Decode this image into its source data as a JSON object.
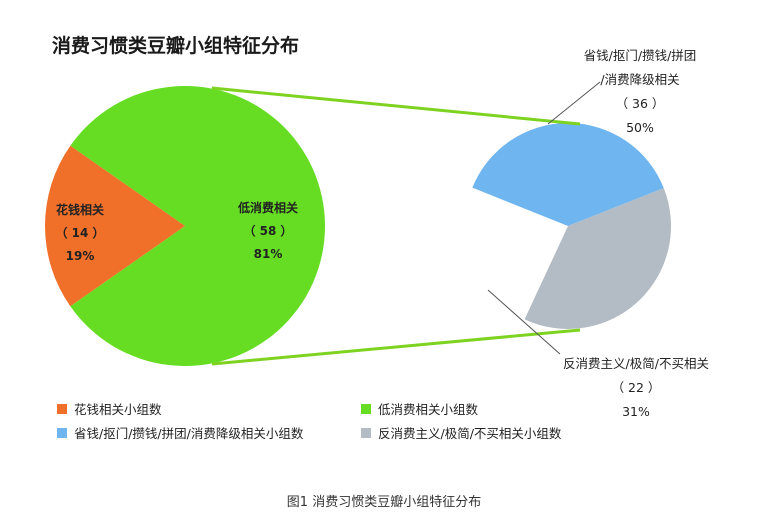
{
  "chart_data": {
    "type": "bar-of-pie",
    "title": "消费习惯类豆瓣小组特征分布",
    "caption": "图1 消费习惯类豆瓣小组特征分布",
    "main_pie": {
      "slices": [
        {
          "label": "低消费相关",
          "count_text": "（ 58 ）",
          "value": 58,
          "percent": "81%",
          "color": "#66dd22"
        },
        {
          "label": "花钱相关",
          "count_text": "（ 14 ）",
          "value": 14,
          "percent": "19%",
          "color": "#f0702a"
        }
      ]
    },
    "sub_pie": {
      "slices": [
        {
          "label_lines": [
            "省钱/抠门/攒钱/拼团",
            "/消费降级相关"
          ],
          "count_text": "（ 36 ）",
          "value": 36,
          "percent": "50%",
          "color": "#6fb6f0"
        },
        {
          "label_lines": [
            "反消费主义/极简/不买相关"
          ],
          "count_text": "（ 22 ）",
          "value": 22,
          "percent": "31%",
          "color": "#b3bcc4"
        }
      ]
    },
    "legend": [
      {
        "label": "花钱相关小组数",
        "color": "#f0702a"
      },
      {
        "label": "低消费相关小组数",
        "color": "#66dd22"
      },
      {
        "label": "省钱/抠门/攒钱/拼团/消费降级相关小组数",
        "color": "#6fb6f0"
      },
      {
        "label": "反消费主义/极简/不买相关小组数",
        "color": "#b3bcc4"
      }
    ],
    "connector_color": "#7ed321"
  }
}
